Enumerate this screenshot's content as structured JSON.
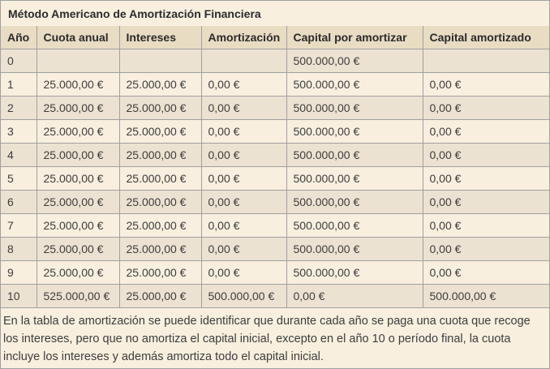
{
  "title": "Método Americano de Amortización Financiera",
  "table": {
    "columns": [
      "Año",
      "Cuota anual",
      "Intereses",
      "Amortización",
      "Capital por amortizar",
      "Capital amortizado"
    ],
    "rows": [
      [
        "0",
        "",
        "",
        "",
        "500.000,00 €",
        ""
      ],
      [
        "1",
        "25.000,00 €",
        "25.000,00 €",
        "0,00 €",
        "500.000,00 €",
        "0,00 €"
      ],
      [
        "2",
        "25.000,00 €",
        "25.000,00 €",
        "0,00 €",
        "500.000,00 €",
        "0,00 €"
      ],
      [
        "3",
        "25.000,00 €",
        "25.000,00 €",
        "0,00 €",
        "500.000,00 €",
        "0,00 €"
      ],
      [
        "4",
        "25.000,00 €",
        "25.000,00 €",
        "0,00 €",
        "500.000,00 €",
        "0,00 €"
      ],
      [
        "5",
        "25.000,00 €",
        "25.000,00 €",
        "0,00 €",
        "500.000,00 €",
        "0,00 €"
      ],
      [
        "6",
        "25.000,00 €",
        "25.000,00 €",
        "0,00 €",
        "500.000,00 €",
        "0,00 €"
      ],
      [
        "7",
        "25.000,00 €",
        "25.000,00 €",
        "0,00 €",
        "500.000,00 €",
        "0,00 €"
      ],
      [
        "8",
        "25.000,00 €",
        "25.000,00 €",
        "0,00 €",
        "500.000,00 €",
        "0,00 €"
      ],
      [
        "9",
        "25.000,00 €",
        "25.000,00 €",
        "0,00 €",
        "500.000,00 €",
        "0,00 €"
      ],
      [
        "10",
        "525.000,00 €",
        "25.000,00 €",
        "500.000,00 €",
        "0,00 €",
        "500.000,00 €"
      ]
    ]
  },
  "footer_text": "En la tabla de amortización se puede identificar que durante cada año se paga una cuota que recoge los intereses, pero que no amortiza el capital inicial, excepto en el año 10 o período final, la cuota incluye los intereses y además amortiza todo el capital inicial.",
  "colors": {
    "page_bg": "#f8efdf",
    "header_bg": "#e8dcc3",
    "row_even_bg": "#ece2d1",
    "row_odd_bg": "#f8efdf",
    "border": "#a0a0a0",
    "text": "#3d3d3d"
  }
}
